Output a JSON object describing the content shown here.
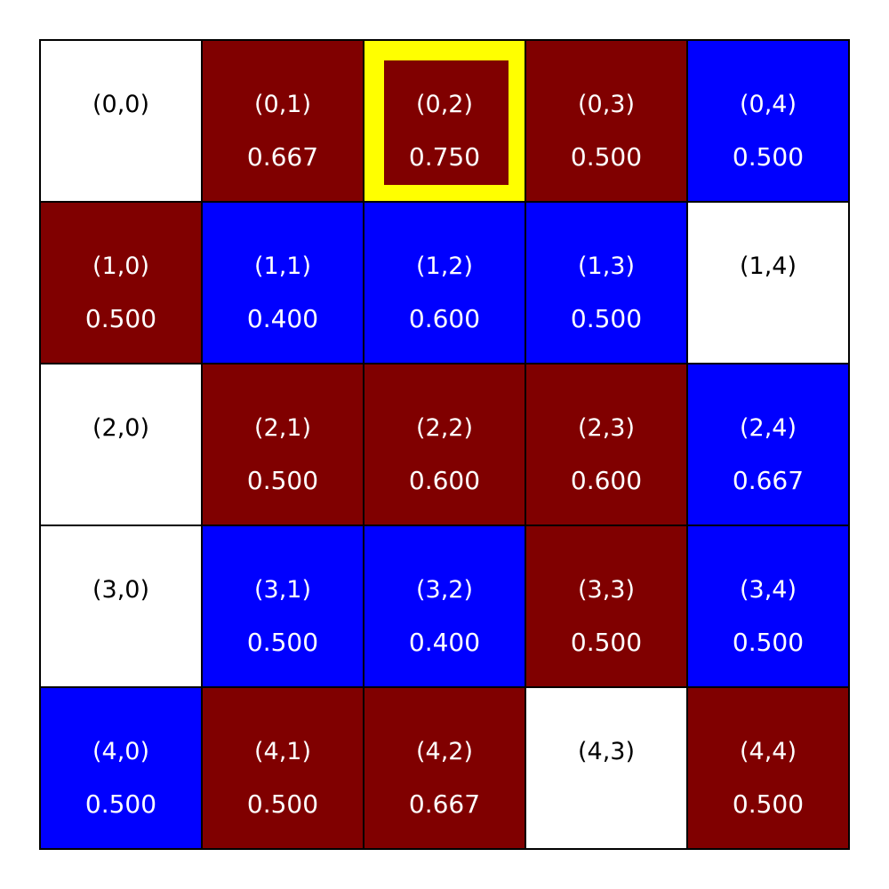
{
  "grid": {
    "rows": 5,
    "cols": 5,
    "selected": [
      0,
      2
    ],
    "colors": {
      "red": "#800000",
      "blue": "#0000ff",
      "empty": "#ffffff",
      "highlight": "#ffff00",
      "border": "#000000",
      "text_on_color": "#ffffff",
      "text_on_empty": "#000000"
    },
    "cells": [
      [
        {
          "coord": "(0,0)",
          "value": "",
          "color": "empty"
        },
        {
          "coord": "(0,1)",
          "value": "0.667",
          "color": "red"
        },
        {
          "coord": "(0,2)",
          "value": "0.750",
          "color": "red"
        },
        {
          "coord": "(0,3)",
          "value": "0.500",
          "color": "red"
        },
        {
          "coord": "(0,4)",
          "value": "0.500",
          "color": "blue"
        }
      ],
      [
        {
          "coord": "(1,0)",
          "value": "0.500",
          "color": "red"
        },
        {
          "coord": "(1,1)",
          "value": "0.400",
          "color": "blue"
        },
        {
          "coord": "(1,2)",
          "value": "0.600",
          "color": "blue"
        },
        {
          "coord": "(1,3)",
          "value": "0.500",
          "color": "blue"
        },
        {
          "coord": "(1,4)",
          "value": "",
          "color": "empty"
        }
      ],
      [
        {
          "coord": "(2,0)",
          "value": "",
          "color": "empty"
        },
        {
          "coord": "(2,1)",
          "value": "0.500",
          "color": "red"
        },
        {
          "coord": "(2,2)",
          "value": "0.600",
          "color": "red"
        },
        {
          "coord": "(2,3)",
          "value": "0.600",
          "color": "red"
        },
        {
          "coord": "(2,4)",
          "value": "0.667",
          "color": "blue"
        }
      ],
      [
        {
          "coord": "(3,0)",
          "value": "",
          "color": "empty"
        },
        {
          "coord": "(3,1)",
          "value": "0.500",
          "color": "blue"
        },
        {
          "coord": "(3,2)",
          "value": "0.400",
          "color": "blue"
        },
        {
          "coord": "(3,3)",
          "value": "0.500",
          "color": "red"
        },
        {
          "coord": "(3,4)",
          "value": "0.500",
          "color": "blue"
        }
      ],
      [
        {
          "coord": "(4,0)",
          "value": "0.500",
          "color": "blue"
        },
        {
          "coord": "(4,1)",
          "value": "0.500",
          "color": "red"
        },
        {
          "coord": "(4,2)",
          "value": "0.667",
          "color": "red"
        },
        {
          "coord": "(4,3)",
          "value": "",
          "color": "empty"
        },
        {
          "coord": "(4,4)",
          "value": "0.500",
          "color": "red"
        }
      ]
    ]
  }
}
